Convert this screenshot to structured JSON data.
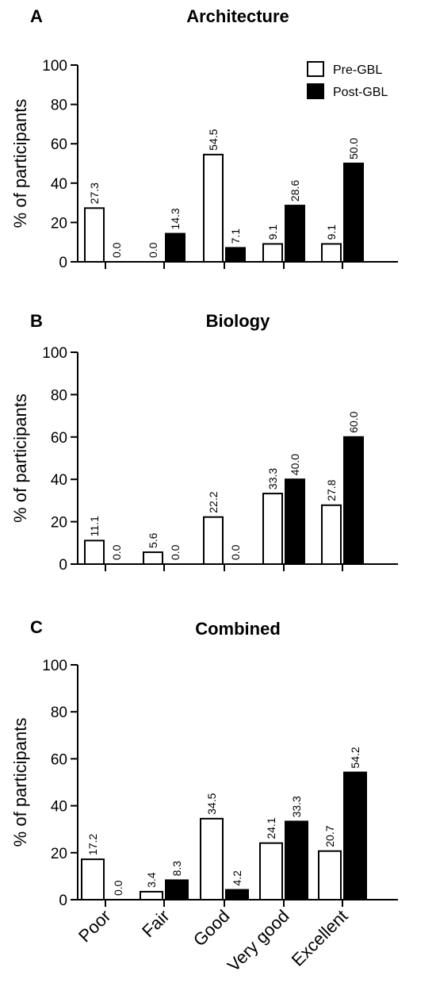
{
  "legend": {
    "pre": "Pre-GBL",
    "post": "Post-GBL"
  },
  "chart_data": [
    {
      "type": "bar",
      "panel": "A",
      "title": "Architecture",
      "ylabel": "% of participants",
      "ylim": [
        0,
        100
      ],
      "yticks": [
        0,
        20,
        40,
        60,
        80,
        100
      ],
      "categories": [
        "Poor",
        "Fair",
        "Good",
        "Very good",
        "Excellent"
      ],
      "show_category_labels": false,
      "legend_position": "top-right",
      "series": [
        {
          "name": "Pre-GBL",
          "values": [
            27.3,
            0.0,
            54.5,
            9.1,
            9.1
          ],
          "labels": [
            "27.3",
            "0.0",
            "54.5",
            "9.1",
            "9.1"
          ],
          "fill": "#ffffff",
          "stroke": "#000000"
        },
        {
          "name": "Post-GBL",
          "values": [
            0.0,
            14.3,
            7.1,
            28.6,
            50.0
          ],
          "labels": [
            "0.0",
            "14.3",
            "7.1",
            "28.6",
            "50.0"
          ],
          "fill": "#000000",
          "stroke": "#000000"
        }
      ]
    },
    {
      "type": "bar",
      "panel": "B",
      "title": "Biology",
      "ylabel": "% of participants",
      "ylim": [
        0,
        100
      ],
      "yticks": [
        0,
        20,
        40,
        60,
        80,
        100
      ],
      "categories": [
        "Poor",
        "Fair",
        "Good",
        "Very good",
        "Excellent"
      ],
      "show_category_labels": false,
      "series": [
        {
          "name": "Pre-GBL",
          "values": [
            11.1,
            5.6,
            22.2,
            33.3,
            27.8
          ],
          "labels": [
            "11.1",
            "5.6",
            "22.2",
            "33.3",
            "27.8"
          ],
          "fill": "#ffffff",
          "stroke": "#000000"
        },
        {
          "name": "Post-GBL",
          "values": [
            0.0,
            0.0,
            0.0,
            40.0,
            60.0
          ],
          "labels": [
            "0.0",
            "0.0",
            "0.0",
            "40.0",
            "60.0"
          ],
          "fill": "#000000",
          "stroke": "#000000"
        }
      ]
    },
    {
      "type": "bar",
      "panel": "C",
      "title": "Combined",
      "ylabel": "% of participants",
      "ylim": [
        0,
        100
      ],
      "yticks": [
        0,
        20,
        40,
        60,
        80,
        100
      ],
      "categories": [
        "Poor",
        "Fair",
        "Good",
        "Very good",
        "Excellent"
      ],
      "show_category_labels": true,
      "series": [
        {
          "name": "Pre-GBL",
          "values": [
            17.2,
            3.4,
            34.5,
            24.1,
            20.7
          ],
          "labels": [
            "17.2",
            "3.4",
            "34.5",
            "24.1",
            "20.7"
          ],
          "fill": "#ffffff",
          "stroke": "#000000"
        },
        {
          "name": "Post-GBL",
          "values": [
            0.0,
            8.3,
            4.2,
            33.3,
            54.2
          ],
          "labels": [
            "0.0",
            "8.3",
            "4.2",
            "33.3",
            "54.2"
          ],
          "fill": "#000000",
          "stroke": "#000000"
        }
      ]
    }
  ]
}
